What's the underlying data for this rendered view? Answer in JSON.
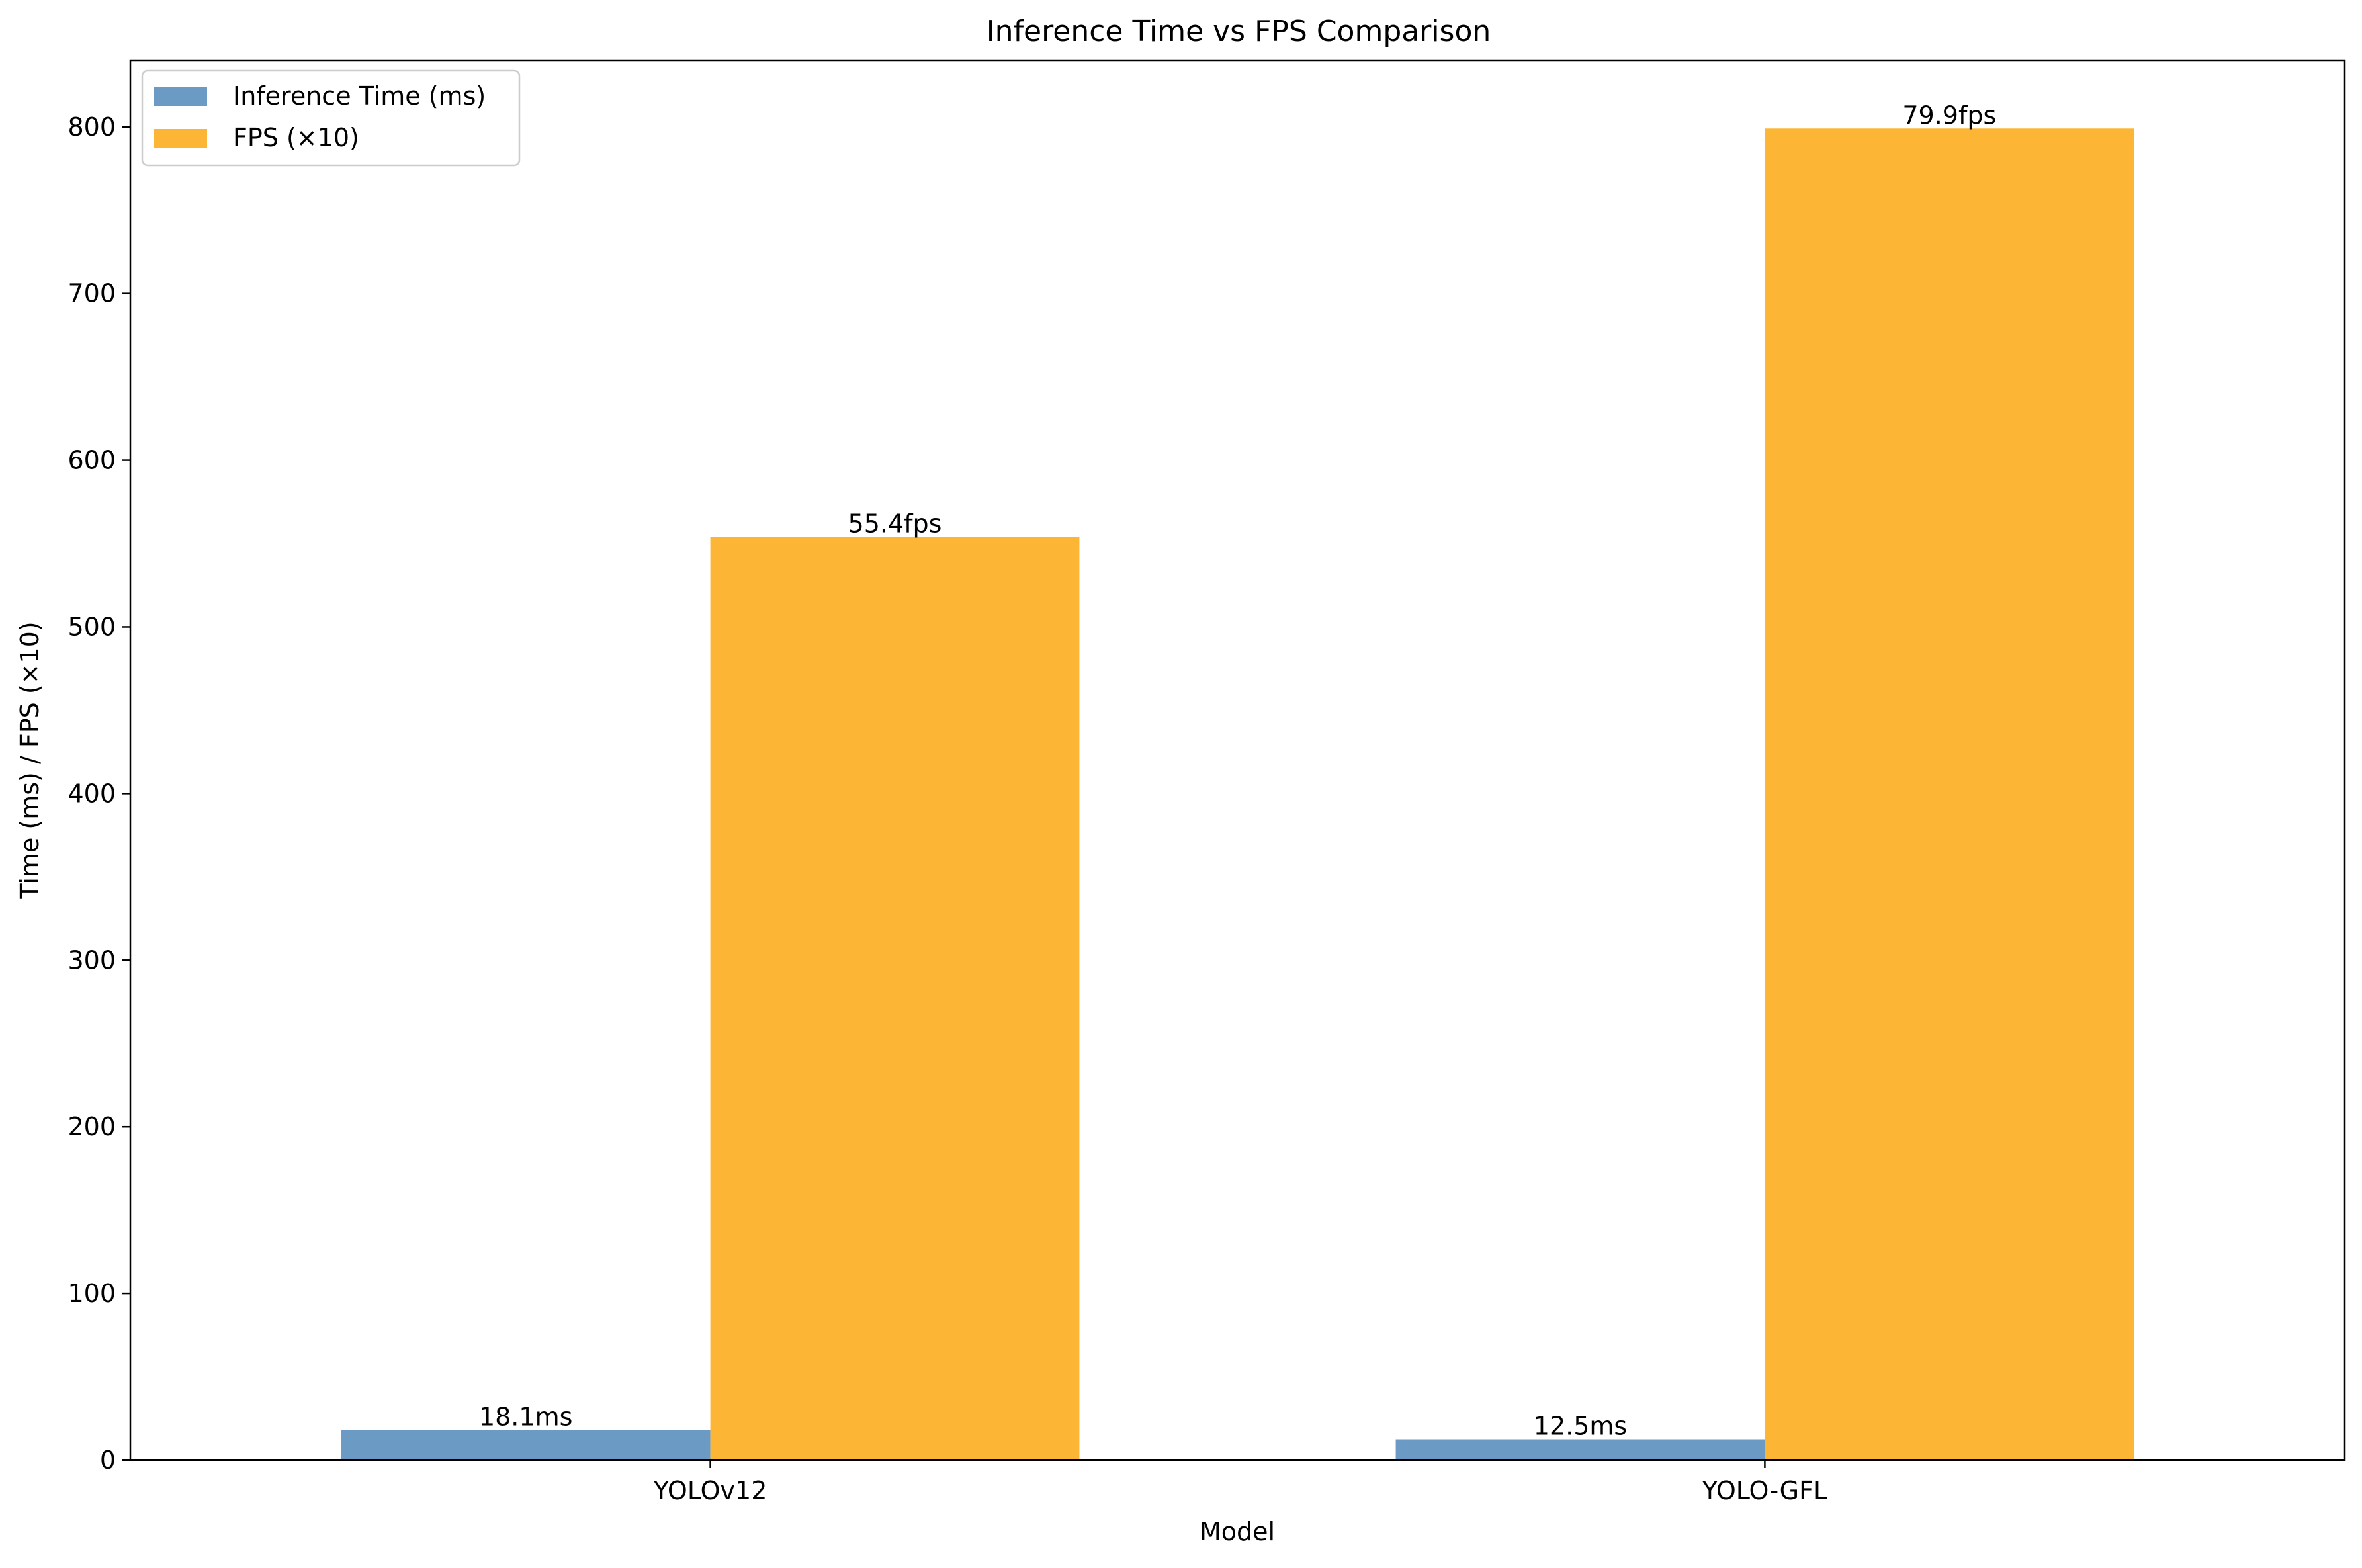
{
  "chart_data": {
    "type": "bar",
    "title": "Inference Time vs FPS Comparison",
    "xlabel": "Model",
    "ylabel": "Time (ms) / FPS (×10)",
    "categories": [
      "YOLOv12",
      "YOLO-GFL"
    ],
    "series": [
      {
        "name": "Inference Time (ms)",
        "values": [
          18.1,
          12.5
        ],
        "labels": [
          "18.1ms",
          "12.5ms"
        ],
        "color": "#6b9ac4"
      },
      {
        "name": "FPS (×10)",
        "values": [
          554,
          799
        ],
        "labels": [
          "55.4fps",
          "79.9fps"
        ],
        "color": "#fdb536"
      }
    ],
    "ylim": [
      0,
      840
    ],
    "yticks": [
      0,
      100,
      200,
      300,
      400,
      500,
      600,
      700,
      800
    ],
    "grid": false,
    "legend_position": "top-left"
  }
}
